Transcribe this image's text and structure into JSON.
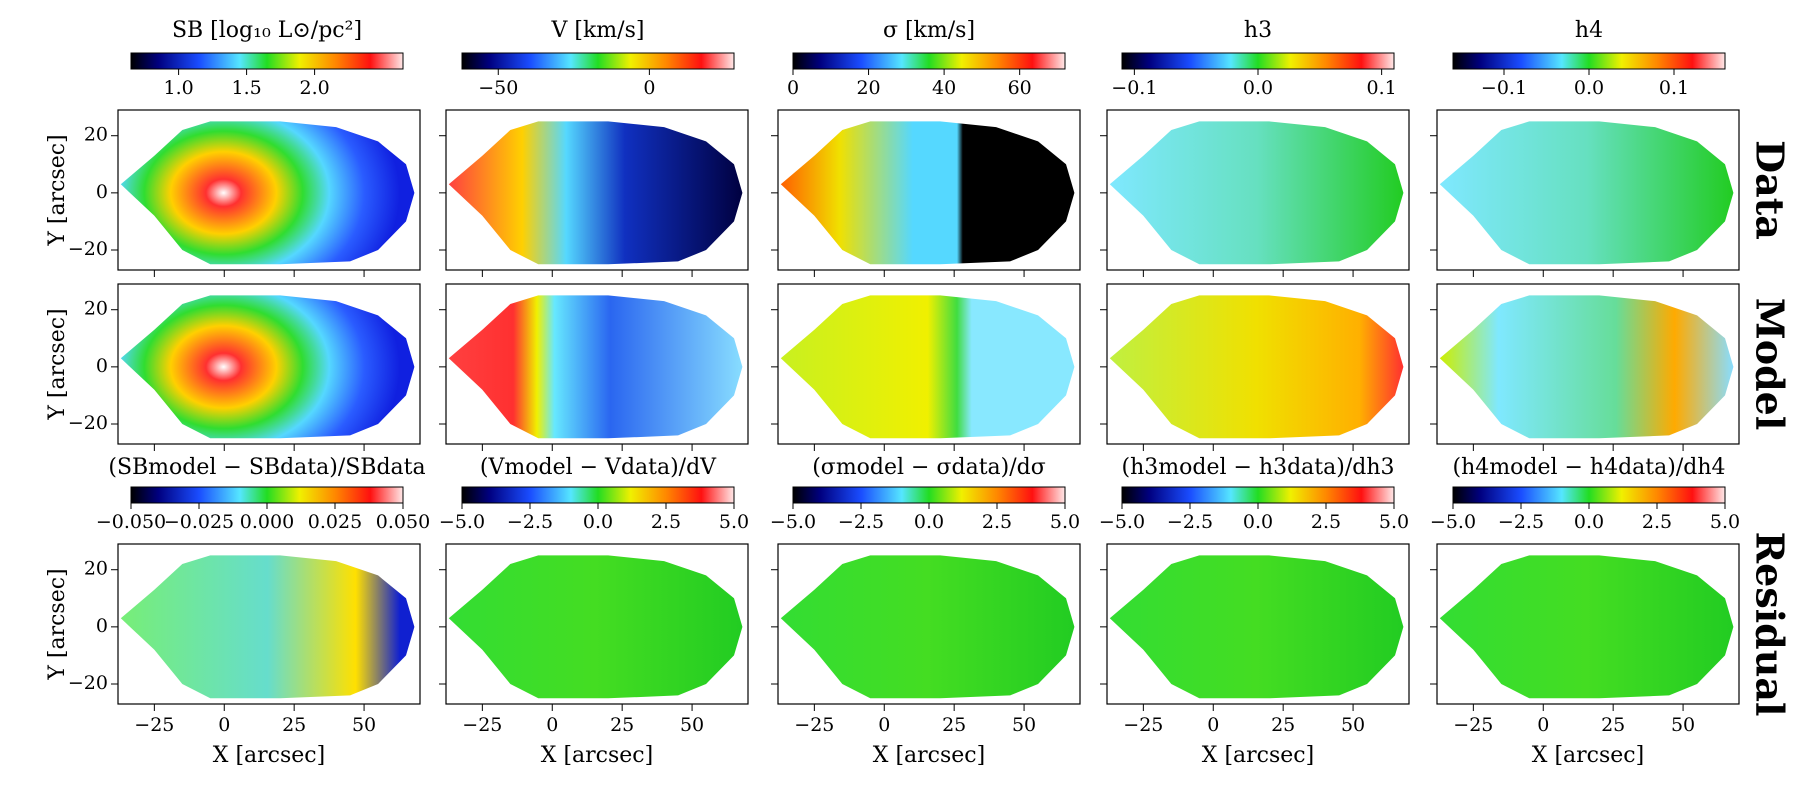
{
  "figure": {
    "colorbars": [
      {
        "label": "SB [log₁₀ L⊙/pc²]",
        "lim": [
          0.65,
          2.65
        ],
        "ticks": [
          {
            "value": 1.0,
            "label": "1.0"
          },
          {
            "value": 1.5,
            "label": "1.5"
          },
          {
            "value": 2.0,
            "label": "2.0"
          }
        ]
      },
      {
        "label": "V [km/s]",
        "lim": [
          -62,
          28
        ],
        "ticks": [
          {
            "value": -50,
            "label": "−50"
          },
          0
        ]
      },
      {
        "label": "σ [km/s]",
        "lim": [
          0,
          72
        ],
        "ticks": [
          0,
          20,
          40,
          60
        ]
      },
      {
        "label": "h3",
        "lim": [
          -0.11,
          0.11
        ],
        "ticks": [
          {
            "value": -0.1,
            "label": "−0.1"
          },
          {
            "value": 0.0,
            "label": "0.0"
          },
          {
            "value": 0.1,
            "label": "0.1"
          }
        ]
      },
      {
        "label": "h4",
        "lim": [
          -0.16,
          0.16
        ],
        "ticks": [
          {
            "value": -0.1,
            "label": "−0.1"
          },
          {
            "value": 0.0,
            "label": "0.0"
          },
          {
            "value": 0.1,
            "label": "0.1"
          }
        ]
      }
    ],
    "residual_colorbars": [
      {
        "label": "(SBmodel − SBdata)/SBdata",
        "lim": [
          -0.05,
          0.05
        ],
        "ticks": [
          {
            "value": -0.05,
            "label": "−0.050"
          },
          {
            "value": -0.025,
            "label": "−0.025"
          },
          {
            "value": 0.0,
            "label": "0.000"
          },
          {
            "value": 0.025,
            "label": "0.025"
          },
          {
            "value": 0.05,
            "label": "0.050"
          }
        ]
      },
      {
        "label": "(Vmodel − Vdata)/dV",
        "lim": [
          -5,
          5
        ],
        "ticks": [
          {
            "value": -5,
            "label": "−5.0"
          },
          {
            "value": -2.5,
            "label": "−2.5"
          },
          {
            "value": 0,
            "label": "0.0"
          },
          {
            "value": 2.5,
            "label": "2.5"
          },
          {
            "value": 5,
            "label": "5.0"
          }
        ]
      },
      {
        "label": "(σmodel − σdata)/dσ",
        "lim": [
          -5,
          5
        ],
        "ticks": [
          {
            "value": -5,
            "label": "−5.0"
          },
          {
            "value": -2.5,
            "label": "−2.5"
          },
          {
            "value": 0,
            "label": "0.0"
          },
          {
            "value": 2.5,
            "label": "2.5"
          },
          {
            "value": 5,
            "label": "5.0"
          }
        ]
      },
      {
        "label": "(h3model − h3data)/dh3",
        "lim": [
          -5,
          5
        ],
        "ticks": [
          {
            "value": -5,
            "label": "−5.0"
          },
          {
            "value": -2.5,
            "label": "−2.5"
          },
          {
            "value": 0,
            "label": "0.0"
          },
          {
            "value": 2.5,
            "label": "2.5"
          },
          {
            "value": 5,
            "label": "5.0"
          }
        ]
      },
      {
        "label": "(h4model − h4data)/dh4",
        "lim": [
          -5,
          5
        ],
        "ticks": [
          {
            "value": -5,
            "label": "−5.0"
          },
          {
            "value": -2.5,
            "label": "−2.5"
          },
          {
            "value": 0,
            "label": "0.0"
          },
          {
            "value": 2.5,
            "label": "2.5"
          },
          {
            "value": 5,
            "label": "5.0"
          }
        ]
      }
    ],
    "row_labels": [
      "Data",
      "Model",
      "Residual"
    ],
    "xlabel": "X [arcsec]",
    "ylabel": "Y [arcsec]",
    "xlim": [
      -38,
      70
    ],
    "ylim": [
      -27,
      29
    ],
    "xticks": [
      {
        "value": -25,
        "label": "−25"
      },
      0,
      25,
      50
    ],
    "yticks": [
      {
        "value": -20,
        "label": "−20"
      },
      0,
      20
    ]
  }
}
